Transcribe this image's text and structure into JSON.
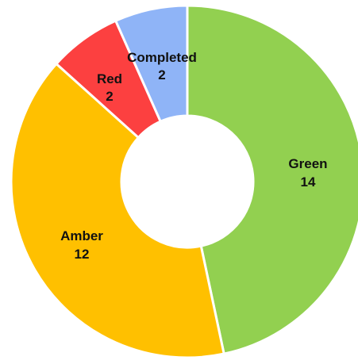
{
  "chart_data": {
    "type": "pie",
    "donut": true,
    "start_angle_deg": 0,
    "direction": "clockwise",
    "legend": "none",
    "slices": [
      {
        "key": "green",
        "label": "Green",
        "value": 14,
        "value_label": "14",
        "color": "#92d050"
      },
      {
        "key": "amber",
        "label": "Amber",
        "value": 12,
        "value_label": "12",
        "color": "#ffc000"
      },
      {
        "key": "red",
        "label": "Red",
        "value": 2,
        "value_label": "2",
        "color": "#fc4040"
      },
      {
        "key": "completed",
        "label": "Completed",
        "value": 2,
        "value_label": "2",
        "color": "#8fb4f7"
      }
    ]
  }
}
